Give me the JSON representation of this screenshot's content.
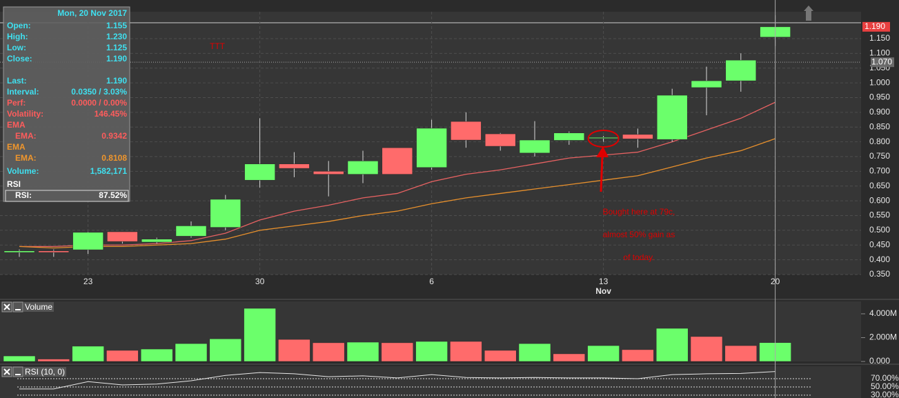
{
  "chart_data": [
    {
      "type": "candlestick",
      "categories": [
        null,
        null,
        "23",
        null,
        null,
        null,
        null,
        "30",
        null,
        null,
        null,
        null,
        "6",
        null,
        null,
        null,
        null,
        "13",
        null,
        null,
        null,
        null,
        "20"
      ],
      "x_month_label": "Nov",
      "open": [
        0.425,
        0.43,
        0.434,
        0.495,
        0.46,
        0.48,
        0.51,
        0.67,
        0.725,
        0.7,
        0.69,
        0.78,
        0.713,
        0.869,
        0.827,
        0.762,
        0.805,
        0.812,
        0.825,
        0.808,
        0.984,
        1.007,
        1.155
      ],
      "high": [
        0.435,
        0.435,
        0.495,
        0.495,
        0.475,
        0.53,
        0.62,
        0.88,
        0.765,
        0.735,
        0.77,
        0.78,
        0.875,
        0.9,
        0.83,
        0.87,
        0.835,
        0.82,
        0.845,
        0.98,
        1.055,
        1.1,
        1.23
      ],
      "low": [
        0.41,
        0.41,
        0.42,
        0.455,
        0.455,
        0.475,
        0.5,
        0.645,
        0.68,
        0.615,
        0.66,
        0.69,
        0.705,
        0.78,
        0.77,
        0.75,
        0.79,
        0.8,
        0.78,
        0.8,
        0.89,
        0.97,
        1.125
      ],
      "close": [
        0.43,
        0.425,
        0.493,
        0.462,
        0.47,
        0.515,
        0.605,
        0.725,
        0.71,
        0.69,
        0.735,
        0.69,
        0.846,
        0.806,
        0.785,
        0.806,
        0.83,
        0.815,
        0.81,
        0.958,
        1.007,
        1.077,
        1.19
      ],
      "up_color": "#6bff6b",
      "down_color": "#ff6b6b",
      "overlays": [
        {
          "name": "EMA",
          "color": "#e86262",
          "values": [
            0.445,
            0.445,
            0.45,
            0.45,
            0.455,
            0.465,
            0.49,
            0.535,
            0.565,
            0.585,
            0.61,
            0.625,
            0.665,
            0.69,
            0.705,
            0.725,
            0.745,
            0.755,
            0.765,
            0.8,
            0.84,
            0.88,
            0.9342
          ]
        },
        {
          "name": "EMA",
          "color": "#e8902c",
          "values": [
            0.445,
            0.44,
            0.445,
            0.445,
            0.45,
            0.455,
            0.47,
            0.5,
            0.515,
            0.53,
            0.55,
            0.565,
            0.59,
            0.61,
            0.625,
            0.64,
            0.655,
            0.67,
            0.685,
            0.715,
            0.745,
            0.77,
            0.8108
          ]
        }
      ],
      "ylim": [
        0.35,
        1.24
      ],
      "yticks": [
        {
          "value": 0.35,
          "label": "0.350"
        },
        {
          "value": 0.4,
          "label": "0.400"
        },
        {
          "value": 0.45,
          "label": "0.450"
        },
        {
          "value": 0.5,
          "label": "0.500"
        },
        {
          "value": 0.55,
          "label": "0.550"
        },
        {
          "value": 0.6,
          "label": "0.600"
        },
        {
          "value": 0.65,
          "label": "0.650"
        },
        {
          "value": 0.7,
          "label": "0.700"
        },
        {
          "value": 0.75,
          "label": "0.750"
        },
        {
          "value": 0.8,
          "label": "0.800"
        },
        {
          "value": 0.85,
          "label": "0.850"
        },
        {
          "value": 0.9,
          "label": "0.900"
        },
        {
          "value": 0.95,
          "label": "0.950"
        },
        {
          "value": 1.0,
          "label": "1.000"
        },
        {
          "value": 1.05,
          "label": "1.050"
        },
        {
          "value": 1.1,
          "label": "1.100"
        },
        {
          "value": 1.15,
          "label": "1.150"
        }
      ],
      "grid": true,
      "price_markers": [
        {
          "value": 1.19,
          "label": "1.190",
          "color": "#e84040"
        },
        {
          "value": 1.07,
          "label": "1.070",
          "color": "#6a6a6a"
        }
      ],
      "annotations": [
        {
          "text": "TTT",
          "color": "#e00000"
        },
        {
          "lines": [
            "Bought here at 79c,",
            "almost 50% gain as",
            "of today."
          ],
          "color": "#e00000"
        }
      ]
    },
    {
      "type": "bar",
      "title": "Volume",
      "values": [
        460000,
        200000,
        1280000,
        930000,
        1040000,
        1500000,
        1900000,
        4460000,
        1850000,
        1570000,
        1620000,
        1570000,
        1680000,
        1680000,
        930000,
        1500000,
        640000,
        1330000,
        990000,
        2780000,
        2090000,
        1330000,
        1582171
      ],
      "colors": [
        "#6bff6b",
        "#ff6b6b",
        "#6bff6b",
        "#ff6b6b",
        "#6bff6b",
        "#6bff6b",
        "#6bff6b",
        "#6bff6b",
        "#ff6b6b",
        "#ff6b6b",
        "#6bff6b",
        "#ff6b6b",
        "#6bff6b",
        "#ff6b6b",
        "#ff6b6b",
        "#6bff6b",
        "#ff6b6b",
        "#6bff6b",
        "#ff6b6b",
        "#6bff6b",
        "#ff6b6b",
        "#ff6b6b",
        "#6bff6b"
      ],
      "ylim": [
        0,
        4600000
      ],
      "yticks": [
        {
          "value": 0,
          "label": "0.000"
        },
        {
          "value": 2000000,
          "label": "2.000M"
        },
        {
          "value": 4000000,
          "label": "4.000M"
        }
      ]
    },
    {
      "type": "line",
      "title": "RSI (10, 0)",
      "color": "#e8e8e8",
      "values": [
        45,
        45,
        63,
        55,
        57,
        65,
        78,
        85,
        82,
        75,
        77,
        72,
        80,
        73,
        72,
        73,
        72,
        72,
        70,
        80,
        82,
        83,
        87.52
      ],
      "ylim": [
        23,
        97
      ],
      "yticks": [
        {
          "value": 30,
          "label": "30.00%"
        },
        {
          "value": 50,
          "label": "50.00%"
        },
        {
          "value": 70,
          "label": "70.00%"
        }
      ]
    }
  ],
  "info_panel": {
    "date": "Mon, 20 Nov 2017",
    "rows": [
      {
        "label": "Open:",
        "value": "1.155",
        "color": "#3fe0f0"
      },
      {
        "label": "High:",
        "value": "1.230",
        "color": "#3fe0f0"
      },
      {
        "label": "Low:",
        "value": "1.125",
        "color": "#3fe0f0"
      },
      {
        "label": "Close:",
        "value": "1.190",
        "color": "#3fe0f0"
      },
      {
        "label": "Last:",
        "value": "1.190",
        "color": "#3fe0f0"
      },
      {
        "label": "Interval:",
        "value": "0.0350 / 3.03%",
        "color": "#3fe0f0"
      },
      {
        "label": "Perf:",
        "value": "0.0000 / 0.00%",
        "color": "#ff5c5c"
      },
      {
        "label": "Volatility:",
        "value": "146.45%",
        "color": "#ff5c5c"
      },
      {
        "label": "EMA",
        "color": "#ff5c5c"
      },
      {
        "label": "EMA:",
        "value": "0.9342",
        "color": "#ff5c5c"
      },
      {
        "label": "EMA",
        "color": "#f0962c"
      },
      {
        "label": "EMA:",
        "value": "0.8108",
        "color": "#f0962c"
      },
      {
        "label": "Volume:",
        "value": "1,582,171",
        "color": "#3fe0f0"
      },
      {
        "label": "RSI",
        "color": "#ffffff"
      },
      {
        "label": "RSI:",
        "value": "87.52%",
        "color": "#ffffff"
      }
    ]
  }
}
